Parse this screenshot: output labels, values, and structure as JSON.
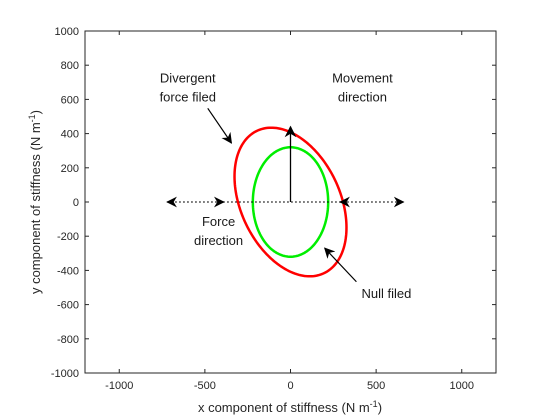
{
  "chart_data": {
    "type": "line",
    "title": "",
    "xlabel": "x component of stiffness (N m",
    "ylabel": "y component of stiffness (N m",
    "unit_superscript": "-1",
    "unit_close": ")",
    "xlim": [
      -1200,
      1200
    ],
    "ylim": [
      -1000,
      1000
    ],
    "xticks": [
      -1000,
      -500,
      0,
      500,
      1000
    ],
    "yticks": [
      -1000,
      -800,
      -600,
      -400,
      -200,
      0,
      200,
      400,
      600,
      800,
      1000
    ],
    "grid": false,
    "legend": "none",
    "series": [
      {
        "color": "#ff0000",
        "ellipse": {
          "center": [
            0,
            0
          ],
          "semi_major": 460,
          "semi_minor": 290,
          "major_axis_angle_deg": 115
        }
      },
      {
        "color": "#00ee00",
        "ellipse": {
          "center": [
            0,
            0
          ],
          "semi_major": 320,
          "semi_minor": 220,
          "major_axis_angle_deg": 90
        }
      }
    ],
    "force_direction_line": {
      "from": [
        -720,
        0
      ],
      "to": [
        660,
        0
      ],
      "color": "#000000",
      "style": "dotted",
      "double_headed": true
    },
    "inner_force_arrows": [
      {
        "from": [
          -400,
          0
        ],
        "to": [
          -390,
          0
        ]
      },
      {
        "from": [
          300,
          0
        ],
        "to": [
          290,
          0
        ]
      }
    ],
    "movement_arrow": {
      "from": [
        0,
        0
      ],
      "to": [
        0,
        440
      ]
    },
    "annotations": [
      {
        "id": "divergent",
        "lines": [
          "Divergent",
          "force filed"
        ],
        "pos": [
          -600,
          700
        ],
        "arrow_to": [
          -345,
          345
        ]
      },
      {
        "id": "movement",
        "lines": [
          "Movement",
          "direction"
        ],
        "pos": [
          420,
          700
        ]
      },
      {
        "id": "force",
        "lines": [
          "Force",
          "direction"
        ],
        "pos": [
          -420,
          -140
        ]
      },
      {
        "id": "null",
        "lines": [
          "Null filed"
        ],
        "pos": [
          560,
          -560
        ],
        "arrow_to": [
          200,
          -270
        ]
      }
    ]
  },
  "colors": {
    "axis": "#262626",
    "background": "#ffffff"
  }
}
